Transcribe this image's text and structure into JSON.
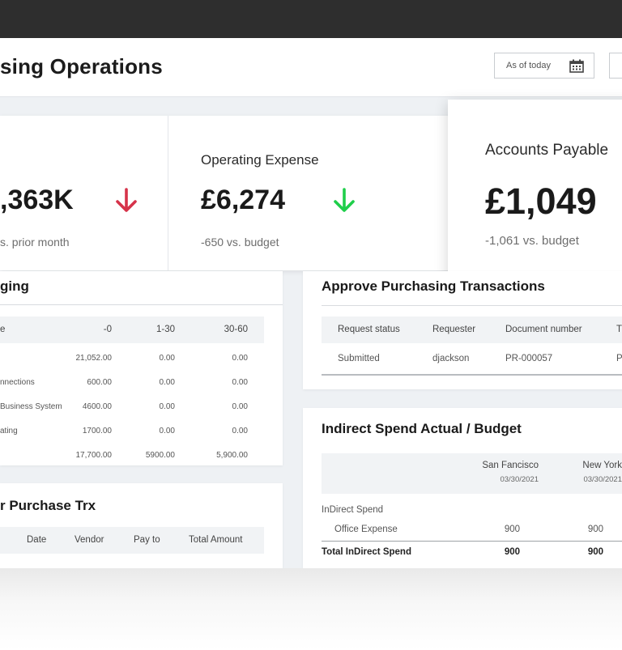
{
  "header": {
    "title": "sing Operations",
    "date_filter": "As of today"
  },
  "kpis": [
    {
      "value": ",363K",
      "sub": "s. prior month",
      "trend": "down",
      "trend_color": "#d6334a"
    },
    {
      "label": "Operating Expense",
      "value": "£6,274",
      "sub": "-650 vs. budget",
      "trend": "down",
      "trend_color": "#1fce4a"
    },
    {
      "label": "Accounts Payable",
      "value": "£1,049",
      "sub": "-1,061 vs. budget"
    }
  ],
  "aging": {
    "title": "ging",
    "columns": [
      "e",
      "-0",
      "1-30",
      "30-60"
    ],
    "rows": [
      {
        "name": "",
        "v0": "21,052.00",
        "v1": "0.00",
        "v2": "0.00"
      },
      {
        "name": "nnections",
        "v0": "600.00",
        "v1": "0.00",
        "v2": "0.00"
      },
      {
        "name": "Business System",
        "v0": "4600.00",
        "v1": "0.00",
        "v2": "0.00"
      },
      {
        "name": "ating",
        "v0": "1700.00",
        "v1": "0.00",
        "v2": "0.00"
      },
      {
        "name": "",
        "v0": "17,700.00",
        "v1": "5900.00",
        "v2": "5,900.00"
      }
    ]
  },
  "purchase": {
    "title": "r Purchase Trx",
    "columns": [
      "Date",
      "Vendor",
      "Pay to",
      "Total Amount"
    ]
  },
  "approve": {
    "title": "Approve Purchasing Transactions",
    "columns": [
      "Request status",
      "Requester",
      "Document number",
      "T"
    ],
    "row": {
      "status": "Submitted",
      "requester": "djackson",
      "doc": "PR-000057",
      "extra": "P"
    }
  },
  "indirect": {
    "title": "Indirect Spend Actual / Budget",
    "col1": {
      "city": "San Fancisco",
      "date": "03/30/2021"
    },
    "col2": {
      "city": "New York",
      "date": "03/30/2021"
    },
    "group_label": "InDirect Spend",
    "row_label": "Office Expense",
    "row_v1": "900",
    "row_v2": "900",
    "total_label": "Total InDirect Spend",
    "total_v1": "900",
    "total_v2": "900"
  },
  "colors": {
    "topbar": "#2e2e2e",
    "trend_down_red": "#d6334a",
    "trend_down_green": "#1fce4a"
  },
  "icons": [
    "calendar-icon",
    "arrow-down-icon"
  ]
}
